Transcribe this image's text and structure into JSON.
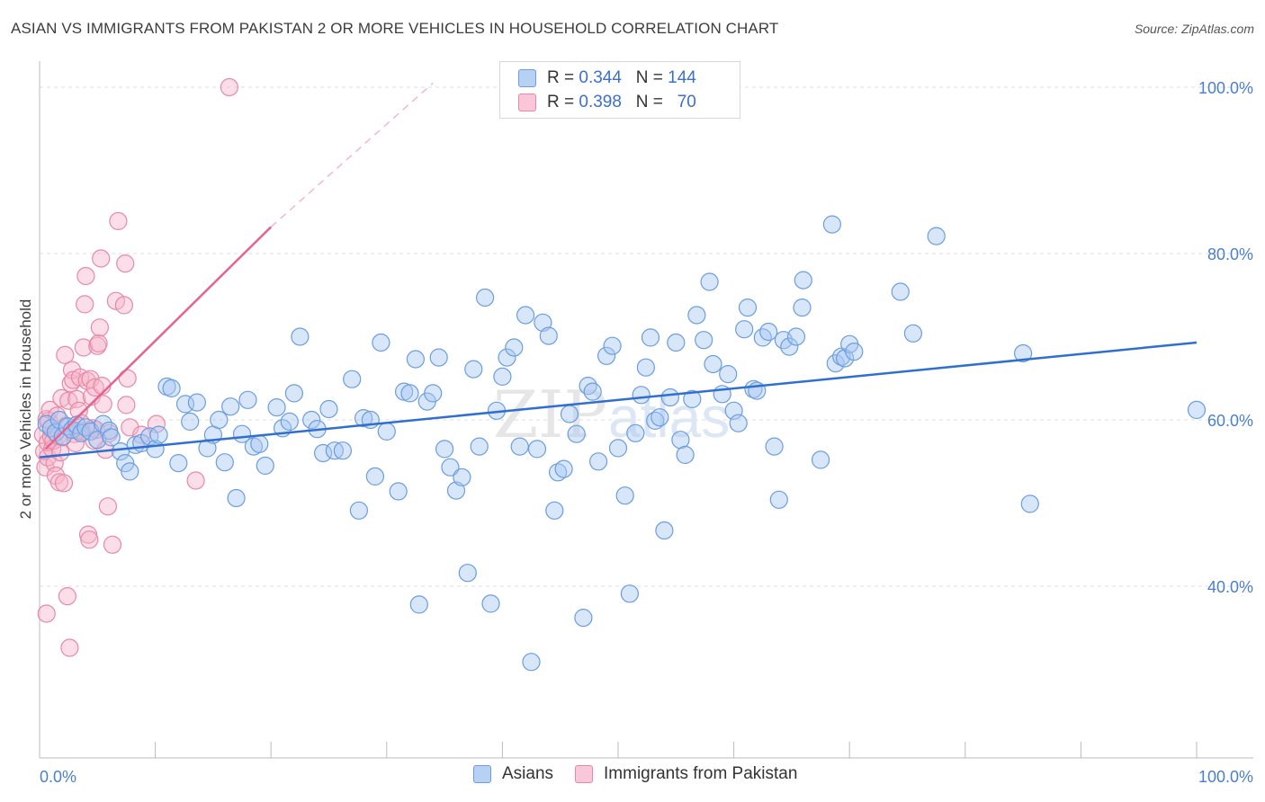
{
  "header": {
    "title": "ASIAN VS IMMIGRANTS FROM PAKISTAN 2 OR MORE VEHICLES IN HOUSEHOLD CORRELATION CHART",
    "source": "Source: ZipAtlas.com"
  },
  "watermark": {
    "zip": "ZIP",
    "atlas": "atlas"
  },
  "legend": {
    "rows": [
      {
        "r_label": "R =",
        "r_value": "0.344",
        "n_label": "N =",
        "n_value": "144"
      },
      {
        "r_label": "R =",
        "r_value": "0.398",
        "n_label": "N =",
        "n_value": "70"
      }
    ]
  },
  "bottom_legend": {
    "asians": "Asians",
    "pakistan": "Immigrants from Pakistan"
  },
  "colors": {
    "blue_fill": "#a9c8f2",
    "blue_stroke": "#6b9de0",
    "blue_line": "#2f6fcf",
    "pink_fill": "#f6b5ca",
    "pink_stroke": "#e888a8",
    "pink_line": "#e8628f",
    "tick_text": "#4a7fd0",
    "grid": "#dddddd"
  },
  "chart_data": {
    "type": "scatter",
    "title": "ASIAN VS IMMIGRANTS FROM PAKISTAN 2 OR MORE VEHICLES IN HOUSEHOLD CORRELATION CHART",
    "xlabel": "",
    "ylabel": "2 or more Vehicles in Household",
    "xlim": [
      0,
      100
    ],
    "ylim": [
      18,
      102
    ],
    "x_tick_labels": [
      "0.0%",
      "100.0%"
    ],
    "y_ticks": [
      40,
      60,
      80,
      100
    ],
    "y_tick_labels": [
      "40.0%",
      "60.0%",
      "80.0%",
      "100.0%"
    ],
    "grid": "horizontal dashed",
    "legend_placement": "top-center",
    "series": [
      {
        "name": "Asians",
        "r": 0.344,
        "n": 144,
        "trend": {
          "x": [
            0,
            100
          ],
          "y": [
            55.5,
            69.3
          ]
        },
        "points": [
          [
            0.6,
            59.5
          ],
          [
            1,
            59
          ],
          [
            1.4,
            58.5
          ],
          [
            1.7,
            60
          ],
          [
            2,
            58
          ],
          [
            2.4,
            59.2
          ],
          [
            2.8,
            58.8
          ],
          [
            3.2,
            59.4
          ],
          [
            3.6,
            58.4
          ],
          [
            4,
            59.1
          ],
          [
            4.4,
            58.6
          ],
          [
            5,
            57.6
          ],
          [
            5.5,
            59.5
          ],
          [
            6,
            58.7
          ],
          [
            6.2,
            57.9
          ],
          [
            7,
            56.2
          ],
          [
            7.4,
            54.8
          ],
          [
            7.8,
            53.8
          ],
          [
            8.3,
            57
          ],
          [
            8.8,
            57.2
          ],
          [
            9.5,
            58
          ],
          [
            10,
            56.5
          ],
          [
            10.3,
            58.2
          ],
          [
            11,
            64
          ],
          [
            11.4,
            63.8
          ],
          [
            12,
            54.8
          ],
          [
            12.6,
            61.9
          ],
          [
            13,
            59.8
          ],
          [
            13.6,
            62.1
          ],
          [
            14.5,
            56.6
          ],
          [
            15,
            58.2
          ],
          [
            15.5,
            60
          ],
          [
            16,
            54.9
          ],
          [
            16.5,
            61.6
          ],
          [
            17,
            50.6
          ],
          [
            17.5,
            58.3
          ],
          [
            18,
            62.4
          ],
          [
            18.5,
            56.8
          ],
          [
            19,
            57.1
          ],
          [
            19.5,
            54.5
          ],
          [
            20.5,
            61.5
          ],
          [
            21,
            59
          ],
          [
            21.6,
            59.8
          ],
          [
            22,
            63.2
          ],
          [
            22.5,
            70
          ],
          [
            23.5,
            60
          ],
          [
            24,
            58.9
          ],
          [
            24.5,
            56
          ],
          [
            25,
            61.3
          ],
          [
            25.5,
            56.3
          ],
          [
            26.2,
            56.3
          ],
          [
            27,
            64.9
          ],
          [
            27.6,
            49.1
          ],
          [
            28,
            60.2
          ],
          [
            28.6,
            60
          ],
          [
            29,
            53.2
          ],
          [
            29.5,
            69.3
          ],
          [
            30,
            58.6
          ],
          [
            31,
            51.4
          ],
          [
            31.5,
            63.4
          ],
          [
            32,
            63.2
          ],
          [
            32.5,
            67.3
          ],
          [
            32.8,
            37.8
          ],
          [
            33.5,
            62.2
          ],
          [
            34,
            63.2
          ],
          [
            34.5,
            67.5
          ],
          [
            35,
            56.5
          ],
          [
            35.5,
            54.3
          ],
          [
            36,
            51.5
          ],
          [
            36.5,
            53.1
          ],
          [
            37,
            41.6
          ],
          [
            37.5,
            66.1
          ],
          [
            38,
            56.8
          ],
          [
            38.5,
            74.7
          ],
          [
            39,
            37.9
          ],
          [
            39.5,
            61.1
          ],
          [
            40,
            65.2
          ],
          [
            40.4,
            67.5
          ],
          [
            41,
            68.7
          ],
          [
            41.5,
            56.8
          ],
          [
            42,
            72.6
          ],
          [
            42.5,
            30.9
          ],
          [
            43,
            56.5
          ],
          [
            43.5,
            71.7
          ],
          [
            44,
            70.1
          ],
          [
            44.5,
            49.1
          ],
          [
            44.8,
            53.7
          ],
          [
            45.3,
            54.1
          ],
          [
            45.8,
            60.7
          ],
          [
            46.4,
            58.3
          ],
          [
            47,
            36.2
          ],
          [
            47.4,
            64.1
          ],
          [
            47.8,
            63.4
          ],
          [
            48.3,
            55
          ],
          [
            49,
            67.7
          ],
          [
            49.5,
            68.9
          ],
          [
            50,
            56.6
          ],
          [
            50.6,
            50.9
          ],
          [
            51,
            39.1
          ],
          [
            51.5,
            58.4
          ],
          [
            52,
            63
          ],
          [
            52.4,
            66.3
          ],
          [
            52.8,
            69.9
          ],
          [
            53.2,
            59.9
          ],
          [
            53.6,
            60.3
          ],
          [
            54,
            46.7
          ],
          [
            54.5,
            62.7
          ],
          [
            55,
            69.3
          ],
          [
            55.4,
            57.6
          ],
          [
            55.8,
            55.8
          ],
          [
            56.4,
            62.5
          ],
          [
            56.8,
            72.6
          ],
          [
            57.4,
            69.6
          ],
          [
            57.9,
            76.6
          ],
          [
            58.2,
            66.7
          ],
          [
            59,
            63.1
          ],
          [
            59.5,
            65.5
          ],
          [
            60,
            61.1
          ],
          [
            60.4,
            59.6
          ],
          [
            60.9,
            70.9
          ],
          [
            61.2,
            73.5
          ],
          [
            61.7,
            63.7
          ],
          [
            62,
            63.5
          ],
          [
            62.5,
            69.9
          ],
          [
            63,
            70.6
          ],
          [
            63.5,
            56.8
          ],
          [
            63.9,
            50.4
          ],
          [
            64.3,
            69.6
          ],
          [
            64.8,
            68.8
          ],
          [
            65.4,
            70
          ],
          [
            65.9,
            73.5
          ],
          [
            66,
            76.8
          ],
          [
            67.5,
            55.2
          ],
          [
            68.5,
            83.5
          ],
          [
            68.8,
            66.8
          ],
          [
            69.3,
            67.6
          ],
          [
            69.6,
            67.4
          ],
          [
            70,
            69.1
          ],
          [
            70.4,
            68.2
          ],
          [
            74.4,
            75.4
          ],
          [
            75.5,
            70.4
          ],
          [
            77.5,
            82.1
          ],
          [
            85,
            68
          ],
          [
            85.6,
            49.9
          ],
          [
            100,
            61.2
          ]
        ]
      },
      {
        "name": "Immigrants from Pakistan",
        "r": 0.398,
        "n": 70,
        "trend": {
          "x": [
            0.5,
            20
          ],
          "y": [
            56.5,
            83.2
          ]
        },
        "trend_extension": {
          "x": [
            20,
            34
          ],
          "y": [
            83.2,
            100.5
          ]
        },
        "points": [
          [
            0.3,
            58.2
          ],
          [
            0.4,
            56.2
          ],
          [
            0.5,
            54.3
          ],
          [
            0.6,
            60.1
          ],
          [
            0.7,
            55.5
          ],
          [
            0.7,
            57.3
          ],
          [
            0.8,
            59.9
          ],
          [
            0.9,
            61.2
          ],
          [
            1,
            58
          ],
          [
            1.1,
            56.5
          ],
          [
            1.2,
            57.5
          ],
          [
            1.3,
            54.8
          ],
          [
            1.4,
            53.3
          ],
          [
            1.5,
            60.5
          ],
          [
            1.6,
            58.1
          ],
          [
            1.7,
            52.5
          ],
          [
            1.8,
            56.1
          ],
          [
            1.9,
            62.6
          ],
          [
            2,
            57.9
          ],
          [
            2.1,
            52.4
          ],
          [
            2.2,
            67.8
          ],
          [
            2.3,
            59.3
          ],
          [
            2.4,
            38.8
          ],
          [
            2.5,
            62.3
          ],
          [
            2.6,
            32.6
          ],
          [
            2.7,
            64.4
          ],
          [
            2.8,
            66
          ],
          [
            2.9,
            64.8
          ],
          [
            3,
            58.3
          ],
          [
            3.1,
            57.2
          ],
          [
            3.2,
            62.5
          ],
          [
            3.3,
            58.7
          ],
          [
            3.4,
            61.1
          ],
          [
            3.5,
            65.1
          ],
          [
            3.6,
            59.6
          ],
          [
            3.7,
            58.6
          ],
          [
            3.8,
            68.7
          ],
          [
            3.9,
            73.9
          ],
          [
            4,
            77.3
          ],
          [
            4.1,
            64.7
          ],
          [
            4.2,
            46.2
          ],
          [
            4.3,
            45.6
          ],
          [
            4.4,
            64.9
          ],
          [
            4.5,
            62.8
          ],
          [
            4.6,
            59
          ],
          [
            4.7,
            57.5
          ],
          [
            4.8,
            63.9
          ],
          [
            4.9,
            58.8
          ],
          [
            5,
            68.9
          ],
          [
            5.1,
            69.2
          ],
          [
            5.2,
            71.1
          ],
          [
            5.3,
            79.4
          ],
          [
            5.4,
            64.1
          ],
          [
            5.5,
            61.9
          ],
          [
            5.7,
            56.4
          ],
          [
            5.9,
            49.6
          ],
          [
            6,
            58.4
          ],
          [
            6.3,
            45
          ],
          [
            6.6,
            74.3
          ],
          [
            6.8,
            83.9
          ],
          [
            7.3,
            73.8
          ],
          [
            7.4,
            78.8
          ],
          [
            7.5,
            61.8
          ],
          [
            7.6,
            65
          ],
          [
            7.8,
            59.1
          ],
          [
            8.8,
            58.2
          ],
          [
            10.1,
            59.5
          ],
          [
            13.5,
            52.7
          ],
          [
            16.4,
            100
          ],
          [
            0.6,
            36.7
          ]
        ]
      }
    ]
  }
}
